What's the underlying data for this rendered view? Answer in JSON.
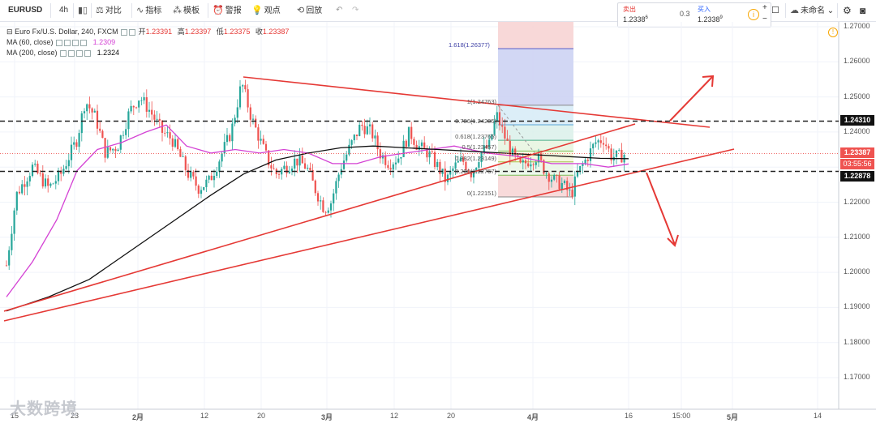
{
  "toolbar": {
    "symbol": "EURUSD",
    "interval": "4h",
    "compare": "对比",
    "indicators": "指标",
    "templates": "模板",
    "alert": "警报",
    "ideas": "观点",
    "replay": "回放",
    "layout_name": "未命名",
    "undo_icon": "undo-icon",
    "redo_icon": "redo-icon"
  },
  "trade": {
    "sell_label": "卖出",
    "sell_price": "1.2338",
    "sell_sup": "6",
    "spread": "0.3",
    "buy_label": "买入",
    "buy_price": "1.2338",
    "buy_sup": "9",
    "plus": "+",
    "minus": "−"
  },
  "legend": {
    "title": "Euro Fx/U.S. Dollar, 240, FXCM",
    "open_k": "开",
    "open_v": "1.23391",
    "high_k": "高",
    "high_v": "1.23397",
    "low_k": "低",
    "low_v": "1.23375",
    "close_k": "收",
    "close_v": "1.23387",
    "ma60_label": "MA (60, close)",
    "ma60_value": "1.2309",
    "ma200_label": "MA (200, close)",
    "ma200_value": "1.2324"
  },
  "price_axis": {
    "ticks": [
      "1.27000",
      "1.26000",
      "1.25000",
      "1.24000",
      "1.23000",
      "1.22000",
      "1.21000",
      "1.20000",
      "1.19000",
      "1.18000",
      "1.17000"
    ],
    "label_high": "1.24310",
    "label_current": "1.23387",
    "label_countdown": "03:55:56",
    "label_low": "1.22878"
  },
  "time_axis": {
    "ticks": [
      "15",
      "23",
      "2月",
      "12",
      "20",
      "3月",
      "12",
      "20",
      "4月",
      "16",
      "15:00",
      "5月",
      "14"
    ]
  },
  "fib": {
    "levels": [
      {
        "ratio": "1.618",
        "price": "1.26377"
      },
      {
        "ratio": "1",
        "price": "1.24763"
      },
      {
        "ratio": "0.786",
        "price": "1.24205"
      },
      {
        "ratio": "0.618",
        "price": "1.23765"
      },
      {
        "ratio": "0.5",
        "price": "1.23457"
      },
      {
        "ratio": "0.382",
        "price": "1.23149"
      },
      {
        "ratio": "0.236",
        "price": "1.22767"
      },
      {
        "ratio": "0",
        "price": "1.22151"
      }
    ]
  },
  "chart_data": {
    "type": "candlestick",
    "symbol": "EURUSD",
    "ylim": [
      1.161,
      1.272
    ],
    "horizontal_lines": [
      1.2431,
      1.22878
    ],
    "current_price": 1.23387,
    "ma60_last": 1.2309,
    "ma200_last": 1.2324
  },
  "watermark": "大数跨境",
  "colors": {
    "up": "#26a69a",
    "down": "#ef5350",
    "trend": "#e53935",
    "ma60": "#d442d4",
    "ma200": "#111111"
  }
}
